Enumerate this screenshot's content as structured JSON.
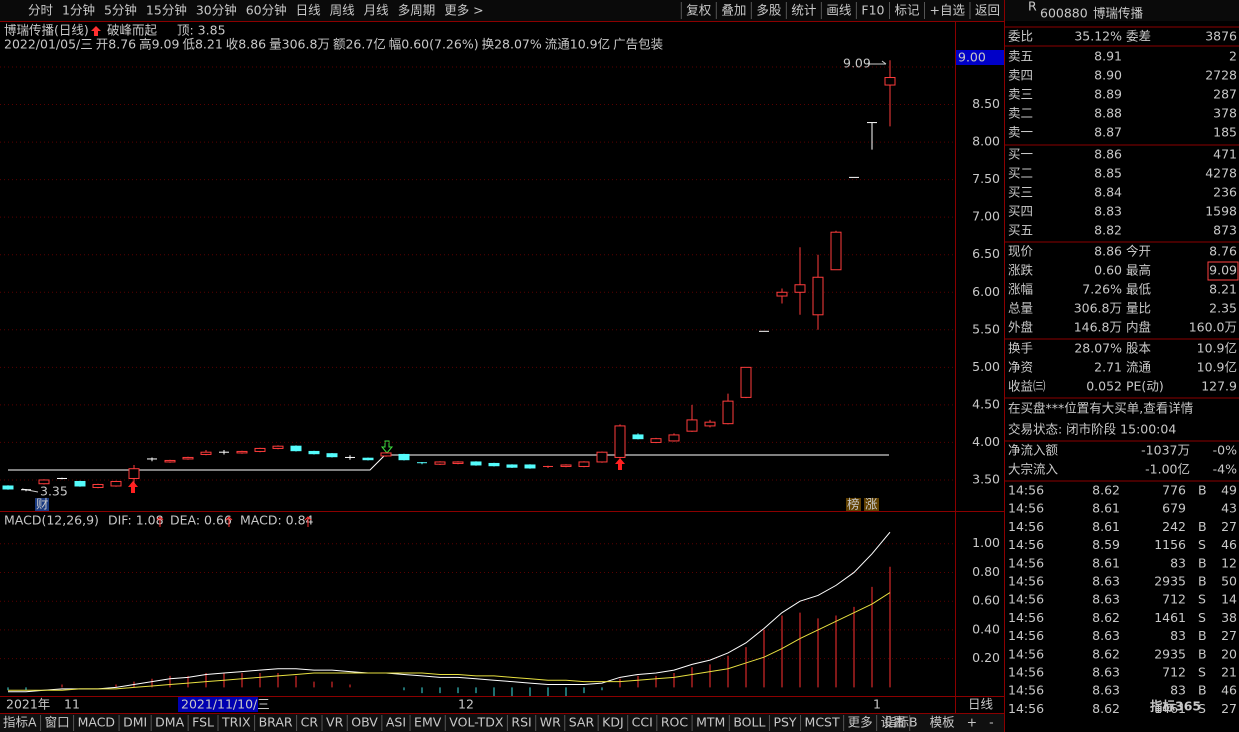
{
  "toolbar": {
    "periods": [
      "分时",
      "1分钟",
      "5分钟",
      "15分钟",
      "30分钟",
      "60分钟",
      "日线",
      "周线",
      "月线",
      "多周期",
      "更多 >"
    ],
    "active": "日线",
    "actions": [
      "复权",
      "叠加",
      "多股",
      "统计",
      "画线",
      "F10",
      "标记",
      "+自选",
      "返回"
    ]
  },
  "price_chart": {
    "title": "博瑞传播(日线)",
    "signal": "破峰而起",
    "top_label": "顶: 3.85",
    "info": [
      {
        "text": "2022/01/05/三",
        "color": "#c8c8c8"
      },
      {
        "text": "开8.76",
        "color": "#ff4040"
      },
      {
        "text": "高9.09",
        "color": "#ff4040"
      },
      {
        "text": "低8.21",
        "color": "#40e040"
      },
      {
        "text": "收8.86",
        "color": "#ff4040"
      },
      {
        "text": "量306.8万",
        "color": "#e8e040"
      },
      {
        "text": "额26.7亿",
        "color": "#e8e040"
      },
      {
        "text": "幅0.60(7.26%)",
        "color": "#ff4040"
      },
      {
        "text": "换28.07%",
        "color": "#c8c8c8"
      },
      {
        "text": "流通10.9亿",
        "color": "#c8c8c8"
      },
      {
        "text": "广告包装",
        "color": "#e8e040"
      }
    ],
    "ylim": [
      3.2,
      9.2
    ],
    "yticks": [
      {
        "value": 9,
        "label": "9.00"
      },
      {
        "value": 8.5,
        "label": "8.50"
      },
      {
        "value": 8,
        "label": "8.00"
      },
      {
        "value": 7.5,
        "label": "7.50"
      },
      {
        "value": 7,
        "label": "7.00"
      },
      {
        "value": 6.5,
        "label": "6.50"
      },
      {
        "value": 6,
        "label": "6.00"
      },
      {
        "value": 5.5,
        "label": "5.50"
      },
      {
        "value": 5,
        "label": "5.00"
      },
      {
        "value": 4.5,
        "label": "4.50"
      },
      {
        "value": 4,
        "label": "4.00"
      },
      {
        "value": 3.5,
        "label": "3.50"
      }
    ],
    "price_box": "9.00",
    "high_label": "9.09",
    "low_label": "3.35",
    "fin_marker": "财",
    "badges": [
      "榜",
      "涨"
    ],
    "up_color": "#ff3c3c",
    "down_color": "#54fcfc",
    "flat_color": "#ffffff",
    "candles": [
      [
        3.42,
        3.43,
        3.37,
        3.38
      ],
      [
        3.37,
        3.38,
        3.35,
        3.37
      ],
      [
        3.45,
        3.51,
        3.44,
        3.5
      ],
      [
        3.52,
        3.53,
        3.51,
        3.52
      ],
      [
        3.48,
        3.49,
        3.41,
        3.42
      ],
      [
        3.4,
        3.45,
        3.39,
        3.44
      ],
      [
        3.42,
        3.49,
        3.41,
        3.48
      ],
      [
        3.52,
        3.7,
        3.45,
        3.65
      ],
      [
        3.78,
        3.8,
        3.75,
        3.78
      ],
      [
        3.74,
        3.77,
        3.73,
        3.76
      ],
      [
        3.78,
        3.81,
        3.77,
        3.8
      ],
      [
        3.84,
        3.9,
        3.83,
        3.87
      ],
      [
        3.87,
        3.9,
        3.84,
        3.87
      ],
      [
        3.86,
        3.89,
        3.85,
        3.88
      ],
      [
        3.88,
        3.93,
        3.87,
        3.92
      ],
      [
        3.92,
        3.96,
        3.91,
        3.95
      ],
      [
        3.95,
        3.96,
        3.88,
        3.89
      ],
      [
        3.88,
        3.89,
        3.84,
        3.85
      ],
      [
        3.85,
        3.86,
        3.8,
        3.81
      ],
      [
        3.8,
        3.83,
        3.77,
        3.8
      ],
      [
        3.79,
        3.8,
        3.76,
        3.77
      ],
      [
        3.82,
        3.87,
        3.81,
        3.86
      ],
      [
        3.84,
        3.85,
        3.76,
        3.77
      ],
      [
        3.73,
        3.74,
        3.71,
        3.72
      ],
      [
        3.71,
        3.75,
        3.7,
        3.74
      ],
      [
        3.72,
        3.75,
        3.71,
        3.74
      ],
      [
        3.74,
        3.75,
        3.69,
        3.7
      ],
      [
        3.72,
        3.73,
        3.68,
        3.69
      ],
      [
        3.7,
        3.71,
        3.66,
        3.67
      ],
      [
        3.7,
        3.71,
        3.65,
        3.66
      ],
      [
        3.67,
        3.69,
        3.66,
        3.68
      ],
      [
        3.68,
        3.71,
        3.67,
        3.7
      ],
      [
        3.68,
        3.75,
        3.67,
        3.74
      ],
      [
        3.74,
        3.88,
        3.73,
        3.87
      ],
      [
        3.8,
        4.24,
        3.79,
        4.22
      ],
      [
        4.1,
        4.12,
        4.04,
        4.05
      ],
      [
        4,
        4.06,
        3.99,
        4.05
      ],
      [
        4.02,
        4.12,
        4.01,
        4.1
      ],
      [
        4.15,
        4.5,
        4.14,
        4.3
      ],
      [
        4.22,
        4.3,
        4.2,
        4.27
      ],
      [
        4.25,
        4.65,
        4.24,
        4.55
      ],
      [
        4.6,
        5,
        4.59,
        5
      ],
      [
        5.48,
        5.48,
        5.48,
        5.48
      ],
      [
        5.95,
        6.05,
        5.85,
        6
      ],
      [
        6,
        6.6,
        5.7,
        6.1
      ],
      [
        5.7,
        6.5,
        5.5,
        6.2
      ],
      [
        6.3,
        6.82,
        6.3,
        6.8
      ],
      [
        7.53,
        7.53,
        7.53,
        7.53
      ],
      [
        8.26,
        8.26,
        7.9,
        8.26
      ],
      [
        8.76,
        9.09,
        8.21,
        8.86
      ]
    ]
  },
  "macd": {
    "label": "MACD(12,26,9)",
    "dif_label": "DIF: 1.08",
    "dea_label": "DEA: 0.66",
    "macd_label": "MACD: 0.84",
    "ylim": [
      -0.06,
      1.2
    ],
    "yticks": [
      {
        "value": 1,
        "label": "1.00"
      },
      {
        "value": 0.8,
        "label": "0.80"
      },
      {
        "value": 0.6,
        "label": "0.60"
      },
      {
        "value": 0.4,
        "label": "0.40"
      },
      {
        "value": 0.2,
        "label": "0.20"
      }
    ],
    "dif": [
      -0.03,
      -0.03,
      -0.02,
      -0.01,
      -0.01,
      -0.01,
      0,
      0.02,
      0.04,
      0.06,
      0.07,
      0.09,
      0.1,
      0.11,
      0.12,
      0.13,
      0.13,
      0.12,
      0.12,
      0.11,
      0.1,
      0.1,
      0.09,
      0.08,
      0.07,
      0.07,
      0.06,
      0.05,
      0.04,
      0.03,
      0.02,
      0.02,
      0.02,
      0.03,
      0.07,
      0.09,
      0.1,
      0.12,
      0.16,
      0.19,
      0.24,
      0.31,
      0.41,
      0.52,
      0.6,
      0.64,
      0.71,
      0.8,
      0.93,
      1.08
    ],
    "dea": [
      -0.02,
      -0.02,
      -0.02,
      -0.02,
      -0.01,
      -0.01,
      -0.01,
      0,
      0.01,
      0.02,
      0.03,
      0.04,
      0.05,
      0.06,
      0.07,
      0.08,
      0.09,
      0.1,
      0.1,
      0.1,
      0.1,
      0.1,
      0.1,
      0.1,
      0.09,
      0.09,
      0.08,
      0.08,
      0.07,
      0.06,
      0.05,
      0.05,
      0.04,
      0.04,
      0.04,
      0.05,
      0.06,
      0.07,
      0.09,
      0.11,
      0.13,
      0.17,
      0.21,
      0.27,
      0.34,
      0.4,
      0.46,
      0.52,
      0.58,
      0.66
    ],
    "hist": [
      -0.02,
      -0.02,
      0,
      0.02,
      0,
      0,
      0.02,
      0.04,
      0.06,
      0.08,
      0.08,
      0.1,
      0.1,
      0.1,
      0.1,
      0.1,
      0.08,
      0.04,
      0.04,
      0.02,
      0,
      0,
      -0.02,
      -0.04,
      -0.04,
      -0.04,
      -0.04,
      -0.06,
      -0.06,
      -0.06,
      -0.06,
      -0.06,
      -0.04,
      -0.02,
      0.06,
      0.08,
      0.08,
      0.1,
      0.14,
      0.16,
      0.22,
      0.28,
      0.4,
      0.5,
      0.52,
      0.48,
      0.5,
      0.56,
      0.7,
      0.84
    ]
  },
  "date_axis": {
    "year": "2021年",
    "nov": "11",
    "cursor": "2021/11/10/三",
    "dec": "12",
    "jan": "1",
    "period": "日线"
  },
  "tabs": [
    "指标A",
    "窗口",
    "MACD",
    "DMI",
    "DMA",
    "FSL",
    "TRIX",
    "BRAR",
    "CR",
    "VR",
    "OBV",
    "ASI",
    "EMV",
    "VOL-TDX",
    "RSI",
    "WR",
    "SAR",
    "KDJ",
    "CCI",
    "ROC",
    "MTM",
    "BOLL",
    "PSY",
    "MCST",
    "更多",
    "设置"
  ],
  "active_tab": "MACD",
  "tabs_right": [
    "指标B",
    "模板",
    "+",
    "-"
  ],
  "panel": {
    "mark": "R",
    "code": "600880",
    "name": "博瑞传播",
    "ratio": [
      "委比",
      "35.12%",
      "委差",
      "3876"
    ],
    "asks": [
      [
        "卖五",
        "8.91",
        "2"
      ],
      [
        "卖四",
        "8.90",
        "2728"
      ],
      [
        "卖三",
        "8.89",
        "287"
      ],
      [
        "卖二",
        "8.88",
        "378"
      ],
      [
        "卖一",
        "8.87",
        "185"
      ]
    ],
    "bids": [
      [
        "买一",
        "8.86",
        "471"
      ],
      [
        "买二",
        "8.85",
        "4278"
      ],
      [
        "买三",
        "8.84",
        "236"
      ],
      [
        "买四",
        "8.83",
        "1598"
      ],
      [
        "买五",
        "8.82",
        "873"
      ]
    ],
    "quotes": [
      [
        "现价",
        "8.86",
        "今开",
        "8.76"
      ],
      [
        "涨跌",
        "0.60",
        "最高",
        "9.09"
      ],
      [
        "涨幅",
        "7.26%",
        "最低",
        "8.21"
      ],
      [
        "总量",
        "306.8万",
        "量比",
        "2.35"
      ],
      [
        "外盘",
        "146.8万",
        "内盘",
        "160.0万"
      ]
    ],
    "stats": [
      [
        "换手",
        "28.07%",
        "股本",
        "10.9亿"
      ],
      [
        "净资",
        "2.71",
        "流通",
        "10.9亿"
      ],
      [
        "收益㈢",
        "0.052",
        "PE(动)",
        "127.9"
      ]
    ],
    "notice": "在买盘***位置有大买单,查看详情",
    "status": "交易状态: 闭市阶段 15:00:04",
    "flows": [
      [
        "净流入额",
        "-1037万",
        "-0%"
      ],
      [
        "大宗流入",
        "-1.00亿",
        "-4%"
      ]
    ],
    "ticks": [
      [
        "14:56",
        "8.62",
        "776",
        "B",
        "49"
      ],
      [
        "14:56",
        "8.61",
        "679",
        "43"
      ],
      [
        "14:56",
        "8.61",
        "242",
        "B",
        "27"
      ],
      [
        "14:56",
        "8.59",
        "1156",
        "S",
        "46"
      ],
      [
        "14:56",
        "8.61",
        "83",
        "B",
        "12"
      ],
      [
        "14:56",
        "8.63",
        "2935",
        "B",
        "50"
      ],
      [
        "14:56",
        "8.63",
        "712",
        "S",
        "14"
      ],
      [
        "14:56",
        "8.62",
        "1461",
        "S",
        "38"
      ],
      [
        "14:56",
        "8.63",
        "83",
        "B",
        "27"
      ],
      [
        "14:56",
        "8.62",
        "2935",
        "B",
        "20"
      ],
      [
        "14:56",
        "8.63",
        "712",
        "S",
        "21"
      ],
      [
        "14:56",
        "8.63",
        "83",
        "B",
        "46"
      ],
      [
        "14:56",
        "8.62",
        "1461",
        "S",
        "27"
      ]
    ]
  },
  "watermark": "指标365"
}
